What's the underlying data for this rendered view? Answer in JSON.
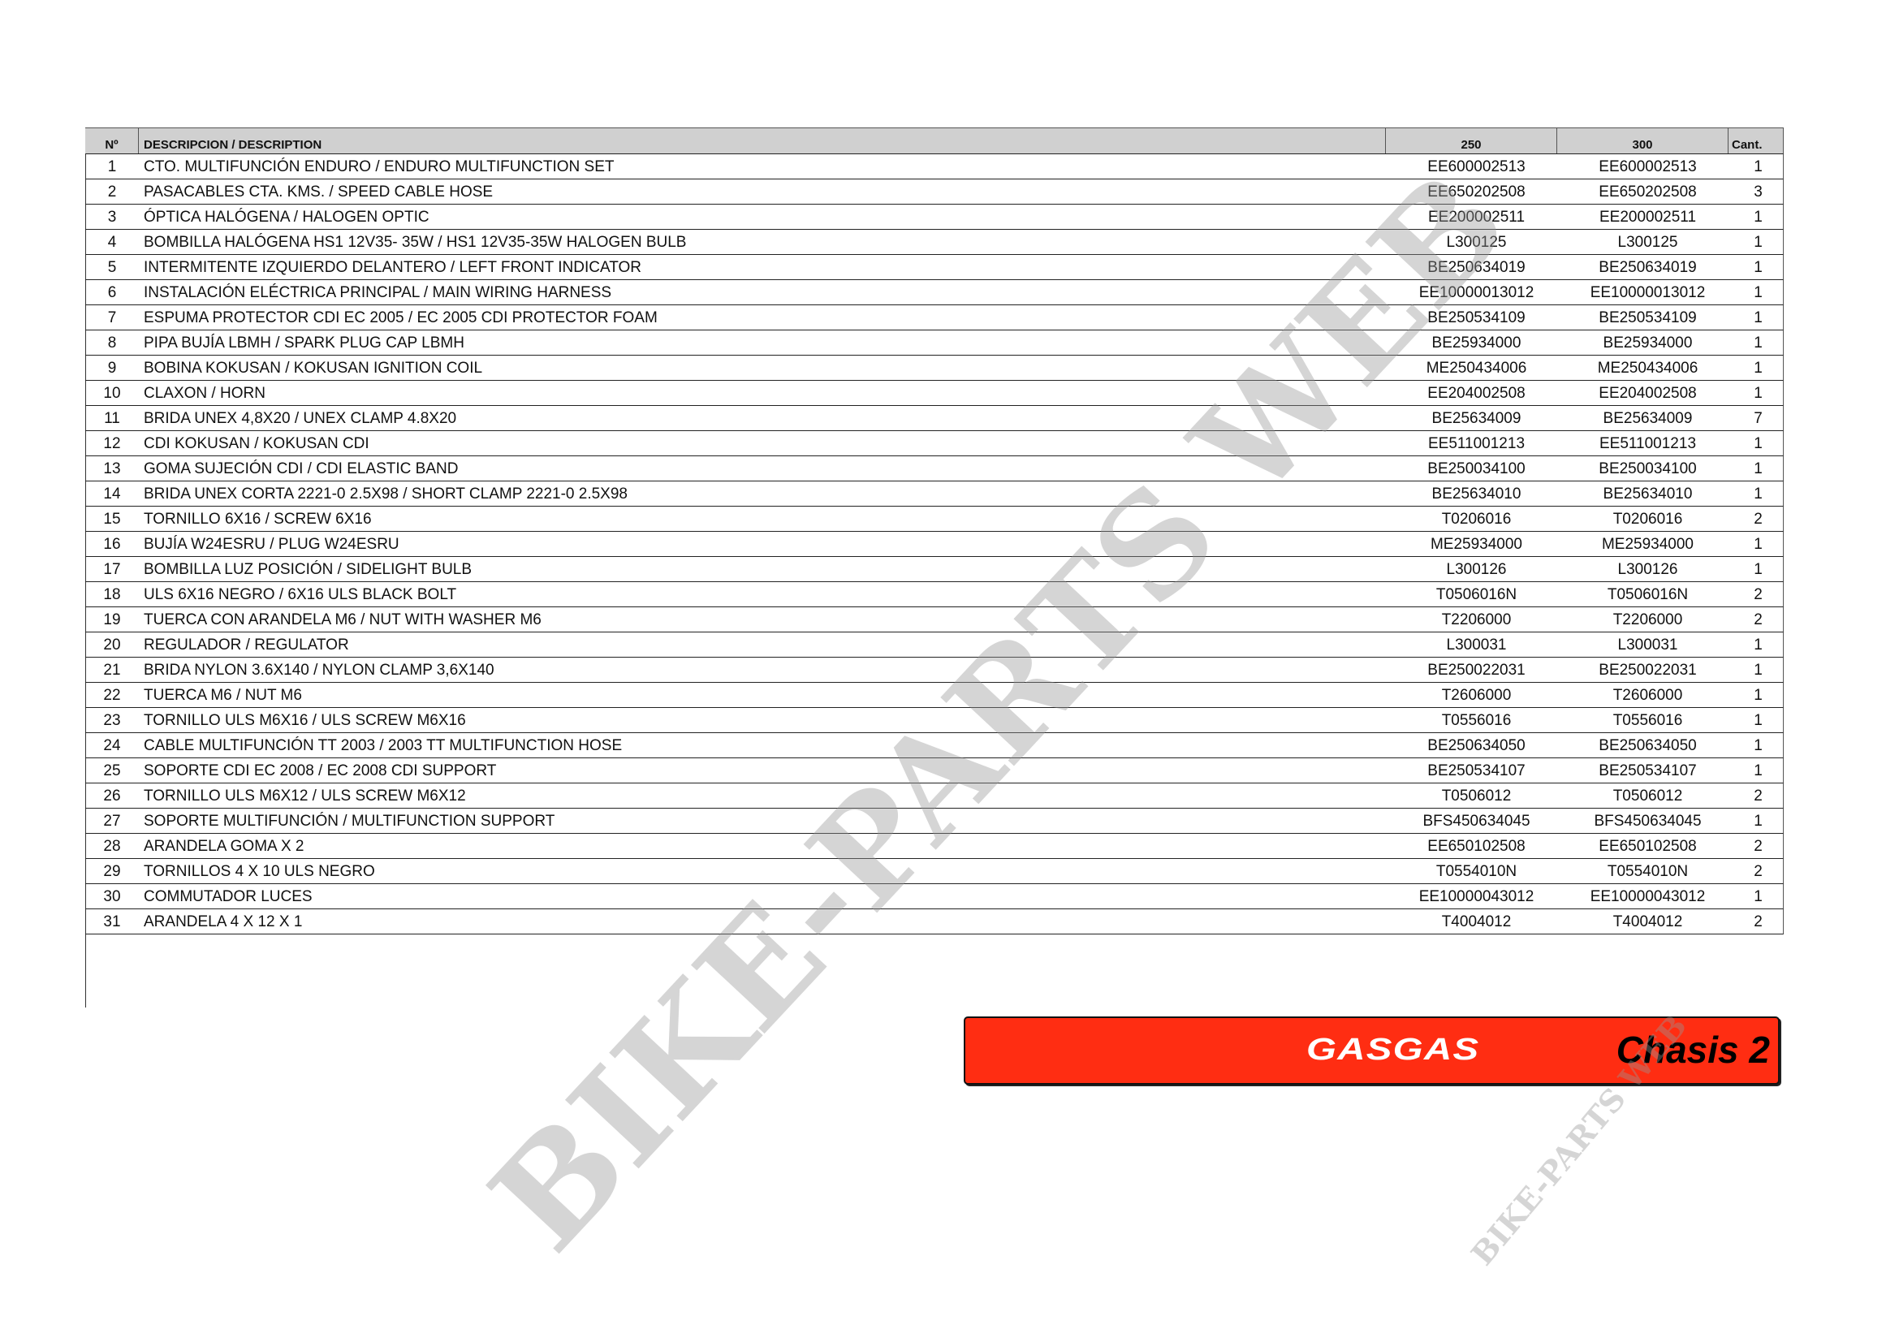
{
  "table": {
    "headers": {
      "no": "Nº",
      "description": "DESCRIPCION / DESCRIPTION",
      "col250": "250",
      "col300": "300",
      "qty": "Cant."
    },
    "rows": [
      [
        "1",
        "CTO. MULTIFUNCIÓN ENDURO / ENDURO MULTIFUNCTION SET",
        "EE600002513",
        "EE600002513",
        "1"
      ],
      [
        "2",
        "PASACABLES CTA. KMS. / SPEED CABLE HOSE",
        "EE650202508",
        "EE650202508",
        "3"
      ],
      [
        "3",
        "ÓPTICA HALÓGENA / HALOGEN OPTIC",
        "EE200002511",
        "EE200002511",
        "1"
      ],
      [
        "4",
        "BOMBILLA HALÓGENA HS1 12V35- 35W / HS1 12V35-35W HALOGEN BULB",
        "L300125",
        "L300125",
        "1"
      ],
      [
        "5",
        "INTERMITENTE IZQUIERDO DELANTERO / LEFT FRONT INDICATOR",
        "BE250634019",
        "BE250634019",
        "1"
      ],
      [
        "6",
        "INSTALACIÓN ELÉCTRICA PRINCIPAL / MAIN WIRING HARNESS",
        "EE10000013012",
        "EE10000013012",
        "1"
      ],
      [
        "7",
        "ESPUMA PROTECTOR CDI EC 2005 / EC 2005 CDI PROTECTOR FOAM",
        "BE250534109",
        "BE250534109",
        "1"
      ],
      [
        "8",
        "PIPA BUJÍA LBMH / SPARK PLUG CAP LBMH",
        "BE25934000",
        "BE25934000",
        "1"
      ],
      [
        "9",
        "BOBINA KOKUSAN / KOKUSAN IGNITION COIL",
        "ME250434006",
        "ME250434006",
        "1"
      ],
      [
        "10",
        "CLAXON / HORN",
        "EE204002508",
        "EE204002508",
        "1"
      ],
      [
        "11",
        "BRIDA UNEX 4,8X20 / UNEX CLAMP 4.8X20",
        "BE25634009",
        "BE25634009",
        "7"
      ],
      [
        "12",
        "CDI KOKUSAN / KOKUSAN CDI",
        "EE511001213",
        "EE511001213",
        "1"
      ],
      [
        "13",
        "GOMA SUJECIÓN CDI / CDI ELASTIC BAND",
        "BE250034100",
        "BE250034100",
        "1"
      ],
      [
        "14",
        "BRIDA UNEX CORTA 2221-0 2.5X98 / SHORT CLAMP 2221-0 2.5X98",
        "BE25634010",
        "BE25634010",
        "1"
      ],
      [
        "15",
        "TORNILLO  6X16  / SCREW 6X16",
        "T0206016",
        "T0206016",
        "2"
      ],
      [
        "16",
        "BUJÍA W24ESRU / PLUG W24ESRU",
        "ME25934000",
        "ME25934000",
        "1"
      ],
      [
        "17",
        "BOMBILLA LUZ POSICIÓN / SIDELIGHT BULB",
        "L300126",
        "L300126",
        "1"
      ],
      [
        "18",
        "ULS 6X16 NEGRO / 6X16 ULS BLACK BOLT",
        "T0506016N",
        "T0506016N",
        "2"
      ],
      [
        "19",
        "TUERCA CON ARANDELA M6 / NUT WITH WASHER M6",
        "T2206000",
        "T2206000",
        "2"
      ],
      [
        "20",
        "REGULADOR / REGULATOR",
        "L300031",
        "L300031",
        "1"
      ],
      [
        "21",
        "BRIDA NYLON 3.6X140 / NYLON CLAMP 3,6X140",
        "BE250022031",
        "BE250022031",
        "1"
      ],
      [
        "22",
        "TUERCA M6 / NUT M6",
        "T2606000",
        "T2606000",
        "1"
      ],
      [
        "23",
        "TORNILLO ULS M6X16 / ULS SCREW  M6X16",
        "T0556016",
        "T0556016",
        "1"
      ],
      [
        "24",
        "CABLE MULTIFUNCIÓN TT 2003 / 2003 TT MULTIFUNCTION HOSE",
        "BE250634050",
        "BE250634050",
        "1"
      ],
      [
        "25",
        "SOPORTE CDI EC 2008 / EC 2008 CDI SUPPORT",
        "BE250534107",
        "BE250534107",
        "1"
      ],
      [
        "26",
        "TORNILLO ULS M6X12 / ULS SCREW M6X12",
        "T0506012",
        "T0506012",
        "2"
      ],
      [
        "27",
        "SOPORTE MULTIFUNCIÓN / MULTIFUNCTION SUPPORT",
        "BFS450634045",
        "BFS450634045",
        "1"
      ],
      [
        "28",
        "ARANDELA GOMA  X 2",
        "EE650102508",
        "EE650102508",
        "2"
      ],
      [
        "29",
        "TORNILLOS  4 X 10 ULS NEGRO",
        "T0554010N",
        "T0554010N",
        "2"
      ],
      [
        "30",
        "COMMUTADOR LUCES",
        "EE10000043012",
        "EE10000043012",
        "1"
      ],
      [
        "31",
        "ARANDELA 4 X 12 X 1",
        "T4004012",
        "T4004012",
        "2"
      ]
    ]
  },
  "banner": {
    "brand": "GASGAS",
    "section": "Chasis 2",
    "color": "#ff2d12"
  },
  "watermark": {
    "text": "BIKE-PARTS WEB",
    "small_text": "BIKE-PARTS WEB"
  }
}
